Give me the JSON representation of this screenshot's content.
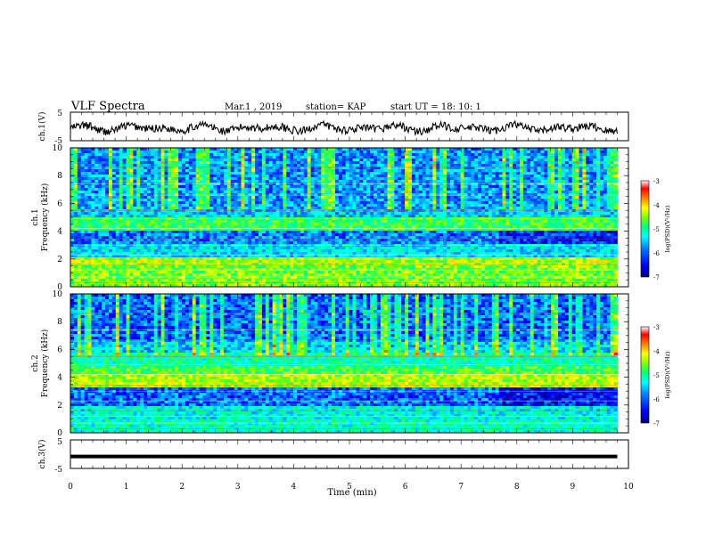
{
  "header": {
    "title": "VLF Spectra",
    "date": "Mar.1 , 2019",
    "station": "station= KAP",
    "start": "start UT = 18: 10: 1"
  },
  "chart_data": [
    {
      "type": "line",
      "ylabel": "ch.1(V)",
      "ylim": [
        -5,
        5
      ],
      "yticks": [
        "5",
        "-5"
      ],
      "xlim": [
        0,
        10
      ],
      "series": [
        {
          "values_approx": "noisy waveform oscillating around about -0.5 V with amplitude between about -3.5 and 2 V over 0 to 9.8 min"
        }
      ]
    },
    {
      "type": "heatmap",
      "ylabel": "ch.1",
      "ylabel2": "Frequency (kHz)",
      "ylim": [
        0,
        10
      ],
      "yticks": [
        "0",
        "2",
        "4",
        "6",
        "8",
        "10"
      ],
      "xlim": [
        0,
        9.8
      ],
      "colorbar": {
        "label": "log(PSD)(V²/Hz)",
        "range": [
          -7,
          -3
        ],
        "ticks": [
          "-3",
          "-4",
          "-5",
          "-6",
          "-7"
        ]
      }
    },
    {
      "type": "heatmap",
      "ylabel": "ch.2",
      "ylabel2": "Frequency (kHz)",
      "ylim": [
        0,
        10
      ],
      "yticks": [
        "0",
        "2",
        "4",
        "6",
        "8",
        "10"
      ],
      "xlim": [
        0,
        9.8
      ],
      "colorbar": {
        "label": "log(PSD)(V²/Hz)",
        "range": [
          -7,
          -3
        ],
        "ticks": [
          "-3",
          "-4",
          "-5",
          "-6",
          "-7"
        ]
      }
    },
    {
      "type": "line",
      "ylabel": "ch.3(V)",
      "ylim": [
        -5,
        5
      ],
      "yticks": [
        "5",
        "-5"
      ],
      "xlim": [
        0,
        10
      ],
      "series": [
        {
          "x": [
            0,
            9.8
          ],
          "y": [
            -0.8,
            -0.8
          ]
        }
      ]
    }
  ],
  "xaxis": {
    "label": "Time (min)",
    "ticks": [
      "0",
      "1",
      "2",
      "3",
      "4",
      "5",
      "6",
      "7",
      "8",
      "9",
      "10"
    ]
  },
  "colors": {
    "colormap": [
      "#000080",
      "#0000ff",
      "#0080ff",
      "#00ffff",
      "#00ff80",
      "#80ff00",
      "#ffff00",
      "#ff8000",
      "#ff0000",
      "#ffffff"
    ]
  }
}
